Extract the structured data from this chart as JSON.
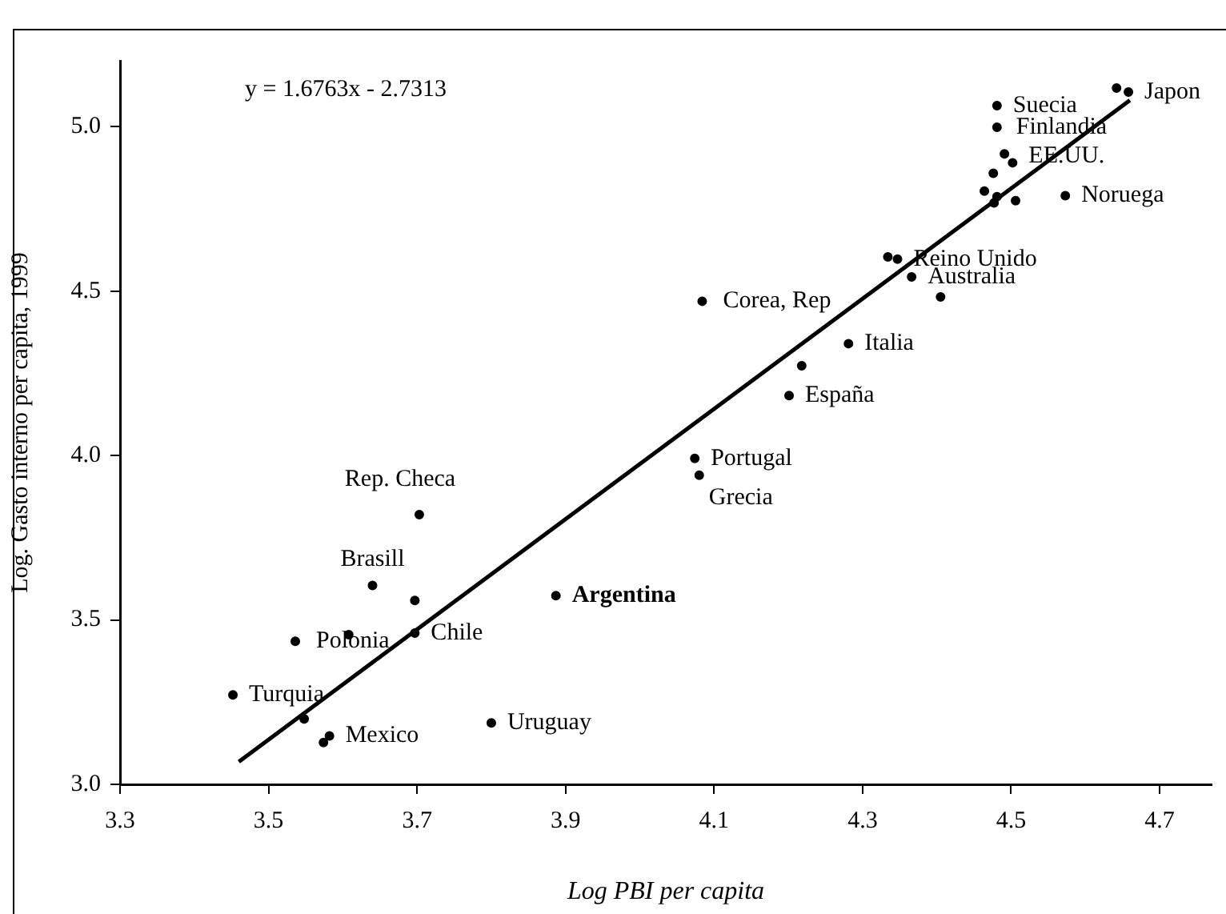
{
  "chart_data": {
    "type": "scatter",
    "xlabel": "Log PBI per capita",
    "ylabel": "Log. Gasto interno per capita, 1999",
    "xlim": [
      3.3,
      4.77
    ],
    "xticks": [
      {
        "value": 3.3,
        "label": "3.3"
      },
      {
        "value": 3.5,
        "label": "3.5"
      },
      {
        "value": 3.7,
        "label": "3.7"
      },
      {
        "value": 3.9,
        "label": "3.9"
      },
      {
        "value": 4.1,
        "label": "4.1"
      },
      {
        "value": 4.3,
        "label": "4.3"
      },
      {
        "value": 4.5,
        "label": "4.5"
      },
      {
        "value": 4.7,
        "label": "4.7"
      }
    ],
    "ylim": [
      3,
      5.2
    ],
    "yticks": [
      {
        "value": 3,
        "label": "3.0"
      },
      {
        "value": 3.5,
        "label": "3.5"
      },
      {
        "value": 4,
        "label": "4.0"
      },
      {
        "value": 4.5,
        "label": "4.5"
      },
      {
        "value": 5,
        "label": "5.0"
      }
    ],
    "marker": "circle",
    "legend": false,
    "series": [
      {
        "color": "#000000",
        "x": [
          4.642,
          4.658,
          4.481,
          4.481,
          4.491,
          4.502,
          4.573,
          4.476,
          4.464,
          4.481,
          4.477,
          4.506,
          4.334,
          4.347,
          4.366,
          4.405,
          4.084,
          4.281,
          4.218,
          4.201,
          4.074,
          4.08,
          3.703,
          3.64,
          3.697,
          3.697,
          3.887,
          3.608,
          3.536,
          3.452,
          3.548,
          3.582,
          3.574,
          3.8
        ],
        "values": [
          5.117,
          5.105,
          5.064,
          4.998,
          4.917,
          4.89,
          4.79,
          4.858,
          4.804,
          4.787,
          4.768,
          4.775,
          4.604,
          4.597,
          4.543,
          4.482,
          4.469,
          4.34,
          4.273,
          4.182,
          3.991,
          3.94,
          3.82,
          3.605,
          3.559,
          3.46,
          3.574,
          3.455,
          3.435,
          3.272,
          3.199,
          3.147,
          3.127,
          3.187
        ]
      },
      {
        "type": "line",
        "marker": "none",
        "color": "#000000",
        "x": [
          3.46,
          4.66
        ],
        "values": [
          3.069,
          5.08
        ]
      }
    ],
    "annotations": [
      "y = 1.6763x - 2.7313",
      {
        "text": "Japon",
        "x": 4.658,
        "y": 5.105
      },
      {
        "text": "Suecia",
        "x": 4.481,
        "y": 5.064
      },
      {
        "text": "Finlandia",
        "x": 4.481,
        "y": 4.998
      },
      {
        "text": "EE.UU.",
        "x": 4.502,
        "y": 4.89
      },
      {
        "text": "Noruega",
        "x": 4.573,
        "y": 4.79
      },
      {
        "text": "Reino Unido",
        "x": 4.347,
        "y": 4.597
      },
      {
        "text": "Australia",
        "x": 4.366,
        "y": 4.543
      },
      {
        "text": "Corea, Rep",
        "x": 4.084,
        "y": 4.469
      },
      {
        "text": "Italia",
        "x": 4.281,
        "y": 4.34
      },
      {
        "text": "España",
        "x": 4.201,
        "y": 4.182
      },
      {
        "text": "Portugal",
        "x": 4.074,
        "y": 3.991
      },
      {
        "text": "Grecia",
        "x": 4.08,
        "y": 3.94
      },
      {
        "text": "Rep. Checa",
        "x": 3.703,
        "y": 3.82
      },
      {
        "text": "Brasill",
        "x": 3.64,
        "y": 3.605
      },
      {
        "text": "Chile",
        "x": 3.697,
        "y": 3.46
      },
      {
        "text": "Argentina",
        "x": 3.887,
        "y": 3.574
      },
      {
        "text": "Polonia",
        "x": 3.536,
        "y": 3.435
      },
      {
        "text": "Turquia",
        "x": 3.452,
        "y": 3.272
      },
      {
        "text": "Mexico",
        "x": 3.582,
        "y": 3.147
      },
      {
        "text": "Uruguay",
        "x": 3.8,
        "y": 3.187
      }
    ]
  }
}
